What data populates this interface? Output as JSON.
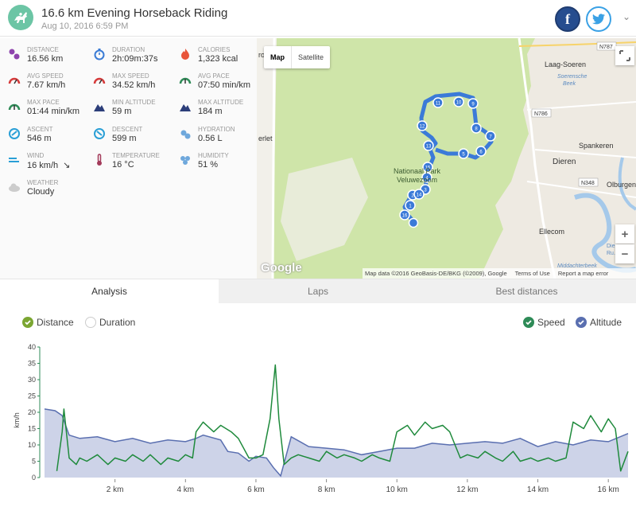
{
  "header": {
    "title": "16.6 km Evening Horseback Riding",
    "subtitle": "Aug 10, 2016 6:59 PM",
    "facebook_label": "f"
  },
  "stats": [
    {
      "label": "DISTANCE",
      "value": "16.56 km",
      "icon": "distance-icon",
      "color": "#8e44ad"
    },
    {
      "label": "DURATION",
      "value": "2h:09m:37s",
      "icon": "stopwatch-icon",
      "color": "#3a7bd5"
    },
    {
      "label": "CALORIES",
      "value": "1,323 kcal",
      "icon": "flame-icon",
      "color": "#e8553a"
    },
    {
      "label": "AVG SPEED",
      "value": "7.67 km/h",
      "icon": "speedometer-icon",
      "color": "#d63b3b"
    },
    {
      "label": "MAX SPEED",
      "value": "34.52 km/h",
      "icon": "speedometer-icon",
      "color": "#d63b3b"
    },
    {
      "label": "AVG PACE",
      "value": "07:50 min/km",
      "icon": "pace-gauge-icon",
      "color": "#2e8b57"
    },
    {
      "label": "MAX PACE",
      "value": "01:44 min/km",
      "icon": "pace-gauge-icon",
      "color": "#2e8b57"
    },
    {
      "label": "MIN ALTITUDE",
      "value": "59 m",
      "icon": "mountain-icon",
      "color": "#2c3e7a"
    },
    {
      "label": "MAX ALTITUDE",
      "value": "184 m",
      "icon": "mountain-icon",
      "color": "#2c3e7a"
    },
    {
      "label": "ASCENT",
      "value": "546 m",
      "icon": "ascent-icon",
      "color": "#2a9fd6"
    },
    {
      "label": "DESCENT",
      "value": "599 m",
      "icon": "descent-icon",
      "color": "#2a9fd6"
    },
    {
      "label": "HYDRATION",
      "value": "0.56 L",
      "icon": "water-drops-icon",
      "color": "#6fa8dc"
    },
    {
      "label": "WIND",
      "value": "16 km/h",
      "icon": "wind-icon",
      "color": "#2a9fd6",
      "extra": "↘"
    },
    {
      "label": "TEMPERATURE",
      "value": "16 °C",
      "icon": "thermometer-icon",
      "color": "#a33a5a"
    },
    {
      "label": "HUMIDITY",
      "value": "51 %",
      "icon": "humidity-icon",
      "color": "#6fa8dc"
    },
    {
      "label": "WEATHER",
      "value": "Cloudy",
      "icon": "cloud-icon",
      "color": "#cccccc"
    }
  ],
  "map": {
    "toggle": [
      "Map",
      "Satellite"
    ],
    "zoom_in": "+",
    "zoom_out": "−",
    "google": "Google",
    "place_labels": [
      {
        "text": "roenendaal"
      },
      {
        "text": "erlet"
      },
      {
        "text": "Laag-Soeren"
      },
      {
        "text": "Soerensche"
      },
      {
        "text": "Beek"
      },
      {
        "text": "Spankeren"
      },
      {
        "text": "Dieren"
      },
      {
        "text": "Olburgen"
      },
      {
        "text": "Ellecom"
      },
      {
        "text": "Nationaal Park"
      },
      {
        "text": "Veluwezoom"
      },
      {
        "text": "Middachterbeek"
      },
      {
        "text": "Dieren"
      },
      {
        "text": "Ru..."
      }
    ],
    "road_labels": [
      "N787",
      "N786",
      "N348"
    ],
    "attribution": [
      "Map data ©2016 GeoBasis-DE/BKG (©2009), Google",
      "Terms of Use",
      "Report a map error"
    ],
    "km_markers": [
      "1",
      "2",
      "3",
      "4",
      "5",
      "6",
      "7",
      "8",
      "9",
      "10",
      "11",
      "12",
      "13",
      "14",
      "15",
      "16"
    ]
  },
  "tabs": [
    "Analysis",
    "Laps",
    "Best distances"
  ],
  "toggles": {
    "left": [
      {
        "label": "Distance",
        "checked": true,
        "color": "#7ba632"
      },
      {
        "label": "Duration",
        "checked": false
      }
    ],
    "right": [
      {
        "label": "Speed",
        "checked": true,
        "color": "#2e8b57"
      },
      {
        "label": "Altitude",
        "checked": true,
        "color": "#5a6fb0"
      }
    ]
  },
  "chart_data": {
    "type": "line",
    "ylabel": "km/h",
    "ylim": [
      0,
      40
    ],
    "yticks": [
      "0",
      "5",
      "10",
      "15",
      "20",
      "25",
      "30",
      "35",
      "40"
    ],
    "xlim": [
      0,
      16.56
    ],
    "xticks": [
      "2 km",
      "4 km",
      "6 km",
      "8 km",
      "10 km",
      "12 km",
      "14 km",
      "16 km"
    ],
    "series": [
      {
        "name": "Altitude",
        "type": "area",
        "color": "#5a6fb0",
        "fill": "#cdd3e8",
        "x": [
          0,
          0.3,
          0.5,
          0.7,
          1.0,
          1.5,
          2.0,
          2.5,
          3.0,
          3.5,
          4.0,
          4.3,
          4.5,
          5.0,
          5.2,
          5.5,
          5.8,
          6.0,
          6.3,
          6.5,
          6.7,
          7.0,
          7.5,
          8.0,
          8.5,
          9.0,
          9.5,
          10.0,
          10.5,
          11.0,
          11.5,
          12.0,
          12.5,
          13.0,
          13.5,
          14.0,
          14.5,
          15.0,
          15.5,
          16.0,
          16.56
        ],
        "values": [
          21,
          20.5,
          19,
          13,
          12,
          12.5,
          11,
          12,
          10.5,
          11.5,
          11,
          12,
          13,
          11.5,
          8,
          7.5,
          5,
          6.5,
          6,
          3,
          0.5,
          12.5,
          9.5,
          9,
          8.5,
          7,
          8,
          9,
          9,
          10.5,
          10,
          10.5,
          11,
          10.5,
          12,
          9.5,
          11,
          10,
          11.5,
          11,
          13.5
        ]
      },
      {
        "name": "Speed",
        "type": "line",
        "color": "#1f8a3c",
        "x": [
          0,
          0.3,
          0.35,
          0.5,
          0.55,
          0.7,
          0.9,
          1.0,
          1.2,
          1.5,
          1.8,
          2.0,
          2.3,
          2.5,
          2.8,
          3.0,
          3.3,
          3.5,
          3.8,
          4.0,
          4.2,
          4.3,
          4.5,
          4.8,
          5.0,
          5.3,
          5.5,
          5.8,
          6.0,
          6.2,
          6.4,
          6.55,
          6.65,
          6.8,
          7.0,
          7.2,
          7.5,
          7.8,
          8.0,
          8.3,
          8.5,
          8.8,
          9.0,
          9.3,
          9.5,
          9.8,
          10.0,
          10.3,
          10.5,
          10.8,
          11.0,
          11.3,
          11.5,
          11.8,
          12.0,
          12.3,
          12.5,
          12.8,
          13.0,
          13.3,
          13.5,
          13.8,
          14.0,
          14.3,
          14.5,
          14.8,
          15.0,
          15.3,
          15.5,
          15.8,
          16.0,
          16.2,
          16.35,
          16.56
        ],
        "values": [
          null,
          null,
          2,
          14,
          21,
          6,
          4,
          6,
          5,
          7,
          4,
          6,
          5,
          7,
          5,
          7,
          4,
          6,
          5,
          7,
          6,
          14,
          17,
          14,
          16,
          14,
          12,
          6,
          6,
          7,
          18,
          34.5,
          18,
          4,
          6,
          7,
          6,
          5,
          8,
          6,
          7,
          6,
          5,
          7,
          6,
          5,
          14,
          16,
          13,
          17,
          15,
          16,
          14,
          6,
          7,
          6,
          8,
          6,
          5,
          8,
          5,
          6,
          5,
          6,
          5,
          6,
          17,
          15,
          19,
          14,
          18,
          15,
          2,
          8
        ]
      }
    ],
    "legend": "top-right"
  }
}
